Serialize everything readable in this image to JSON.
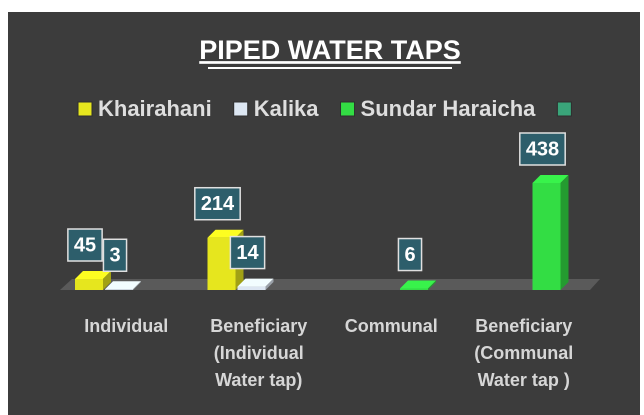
{
  "chart_data": {
    "type": "bar",
    "title": "PIPED WATER TAPS",
    "categories": [
      "Individual",
      "Beneficiary (Individual Water tap)",
      "Communal",
      "Beneficiary (Communal Water tap )"
    ],
    "series": [
      {
        "name": "Khairahani",
        "color": "#e6e61e",
        "values": [
          45,
          214,
          null,
          null
        ]
      },
      {
        "name": "Kalika",
        "color": "#dce6f2",
        "values": [
          3,
          14,
          null,
          null
        ]
      },
      {
        "name": "Sundar Haraicha",
        "color": "#33dd44",
        "values": [
          null,
          null,
          6,
          438
        ]
      },
      {
        "name": null,
        "color": "#3aa57a",
        "values": [
          null,
          null,
          null,
          null
        ]
      }
    ],
    "legend": "top"
  }
}
